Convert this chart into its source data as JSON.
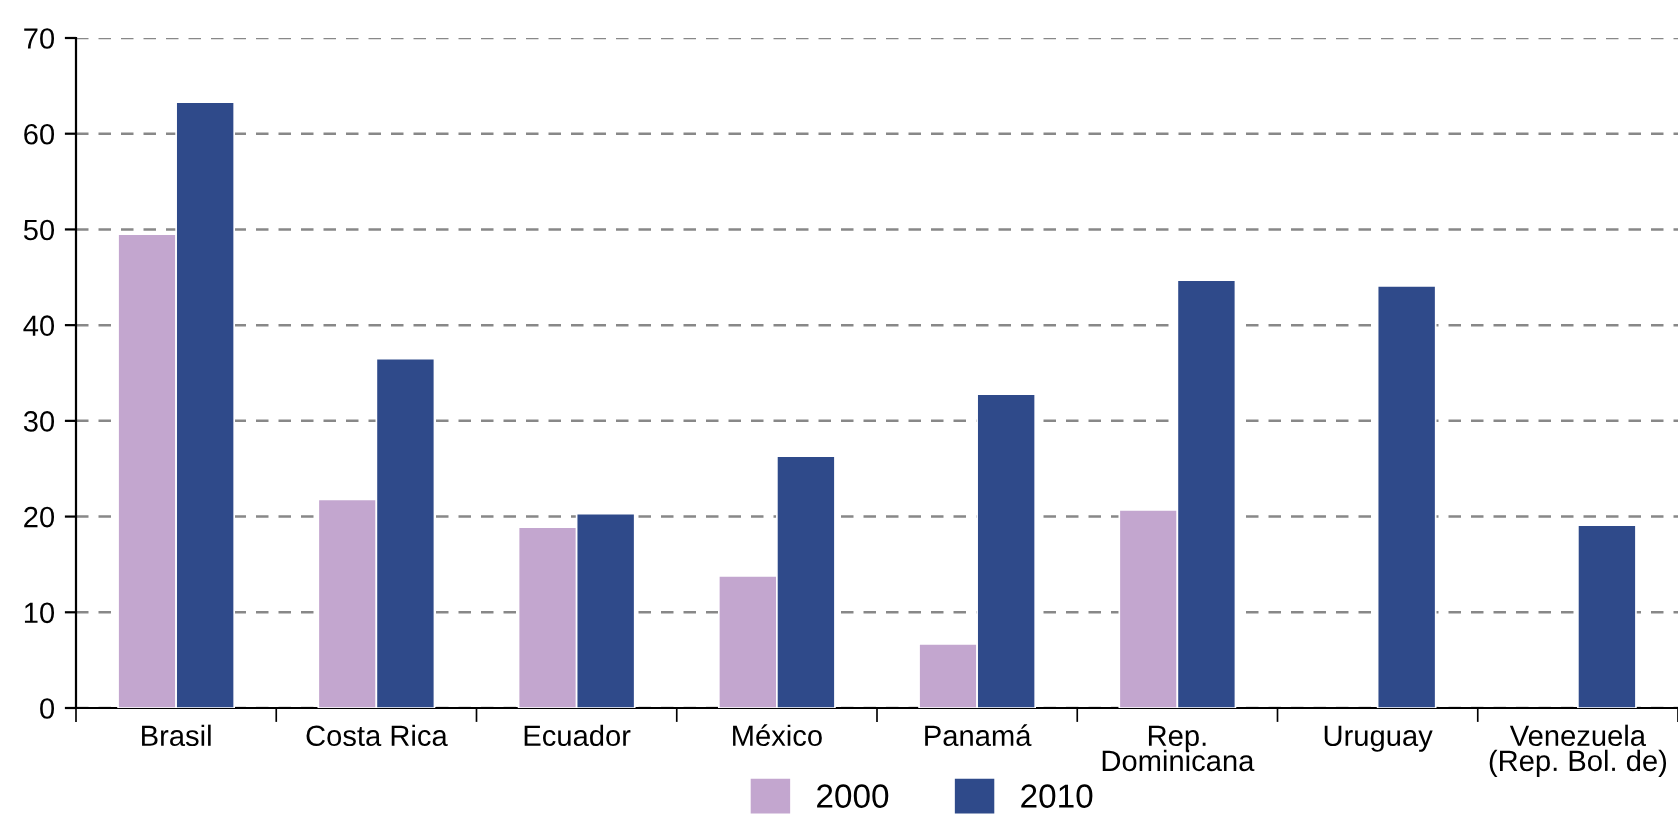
{
  "chart_data": {
    "type": "bar",
    "categories": [
      "Brasil",
      "Costa Rica",
      "Ecuador",
      "México",
      "Panamá",
      "Rep.\nDominicana",
      "Uruguay",
      "Venezuela\n(Rep. Bol. de)"
    ],
    "series": [
      {
        "name": "2000",
        "color": "#c3a6cf",
        "values": [
          49.5,
          21.8,
          18.9,
          13.8,
          6.7,
          20.7,
          null,
          null
        ]
      },
      {
        "name": "2010",
        "color": "#2f4a8a",
        "values": [
          63.3,
          36.5,
          20.3,
          26.3,
          32.8,
          44.7,
          44.1,
          19.1
        ]
      }
    ],
    "ylim": [
      0,
      70
    ],
    "yticks": [
      0,
      10,
      20,
      30,
      40,
      50,
      60,
      70
    ],
    "grid": "y",
    "legend": "bottom"
  }
}
